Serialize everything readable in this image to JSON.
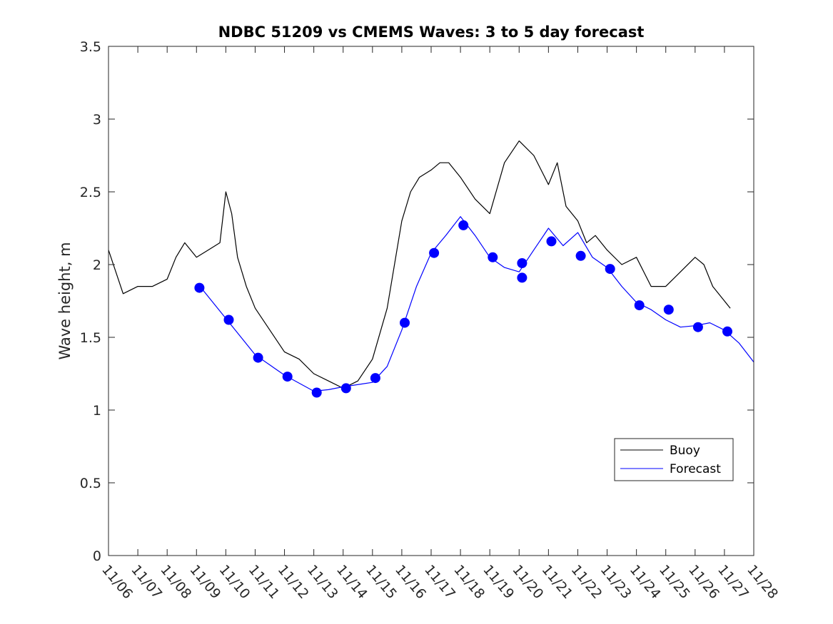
{
  "chart_data": {
    "type": "line",
    "title": "NDBC 51209 vs CMEMS Waves: 3 to 5 day forecast",
    "ylabel": "Wave height, m",
    "xlabel": "",
    "ylim": [
      0,
      3.5
    ],
    "yticks": [
      "0",
      "0.5",
      "1",
      "1.5",
      "2",
      "2.5",
      "3",
      "3.5"
    ],
    "xlim_day": [
      0,
      22
    ],
    "xticks": [
      "11/06",
      "11/07",
      "11/08",
      "11/09",
      "11/10",
      "11/11",
      "11/12",
      "11/13",
      "11/14",
      "11/15",
      "11/16",
      "11/17",
      "11/18",
      "11/19",
      "11/20",
      "11/21",
      "11/22",
      "11/23",
      "11/24",
      "11/25",
      "11/26",
      "11/27",
      "11/28"
    ],
    "legend": {
      "position": "lower-right",
      "entries": [
        "Buoy",
        "Forecast"
      ]
    },
    "colors": {
      "buoy": "#000000",
      "forecast": "#0000ff",
      "axis": "#262626"
    },
    "series": [
      {
        "name": "Buoy",
        "x_day": [
          0,
          0.5,
          1,
          1.5,
          2,
          2.3,
          2.6,
          3,
          3.4,
          3.8,
          4,
          4.2,
          4.4,
          4.7,
          5,
          5.5,
          6,
          6.5,
          7,
          7.5,
          8,
          8.5,
          9,
          9.5,
          10,
          10.3,
          10.6,
          11,
          11.3,
          11.6,
          12,
          12.5,
          13,
          13.5,
          14,
          14.5,
          15,
          15.3,
          15.6,
          16,
          16.3,
          16.6,
          17,
          17.5,
          18,
          18.5,
          19,
          19.5,
          20,
          20.3,
          20.6,
          21,
          21.2
        ],
        "y": [
          2.1,
          1.8,
          1.85,
          1.85,
          1.9,
          2.05,
          2.15,
          2.05,
          2.1,
          2.15,
          2.5,
          2.35,
          2.05,
          1.85,
          1.7,
          1.55,
          1.4,
          1.35,
          1.25,
          1.2,
          1.15,
          1.2,
          1.35,
          1.7,
          2.3,
          2.5,
          2.6,
          2.65,
          2.7,
          2.7,
          2.6,
          2.45,
          2.35,
          2.7,
          2.85,
          2.75,
          2.55,
          2.7,
          2.4,
          2.3,
          2.15,
          2.2,
          2.1,
          2.0,
          2.05,
          1.85,
          1.85,
          1.95,
          2.05,
          2.0,
          1.85,
          1.75,
          1.7
        ]
      },
      {
        "name": "Forecast",
        "x_day": [
          3.2,
          4,
          5,
          6,
          7,
          7.5,
          8,
          9,
          9.5,
          10,
          10.5,
          11,
          11.5,
          12,
          12.5,
          13,
          13.5,
          14,
          14.5,
          15,
          15.5,
          16,
          16.5,
          17,
          17.5,
          18,
          18.5,
          19,
          19.5,
          20,
          20.5,
          21,
          21.5,
          22
        ],
        "y": [
          1.83,
          1.63,
          1.38,
          1.24,
          1.13,
          1.14,
          1.16,
          1.19,
          1.3,
          1.55,
          1.85,
          2.08,
          2.2,
          2.33,
          2.2,
          2.05,
          1.98,
          1.95,
          2.1,
          2.25,
          2.13,
          2.22,
          2.05,
          1.98,
          1.85,
          1.74,
          1.69,
          1.62,
          1.57,
          1.58,
          1.6,
          1.55,
          1.46,
          1.33
        ]
      }
    ],
    "markers": {
      "x_day": [
        3.1,
        4.1,
        5.1,
        6.1,
        7.1,
        8.1,
        9.1,
        10.1,
        11.1,
        12.1,
        13.1,
        14.1,
        14.1,
        15.1,
        16.1,
        17.1,
        18.1,
        19.1,
        20.1,
        21.1
      ],
      "y": [
        1.84,
        1.62,
        1.36,
        1.23,
        1.12,
        1.15,
        1.22,
        1.6,
        2.08,
        2.27,
        2.05,
        2.01,
        1.91,
        2.16,
        2.06,
        1.97,
        1.72,
        1.69,
        1.57,
        1.54
      ]
    }
  }
}
